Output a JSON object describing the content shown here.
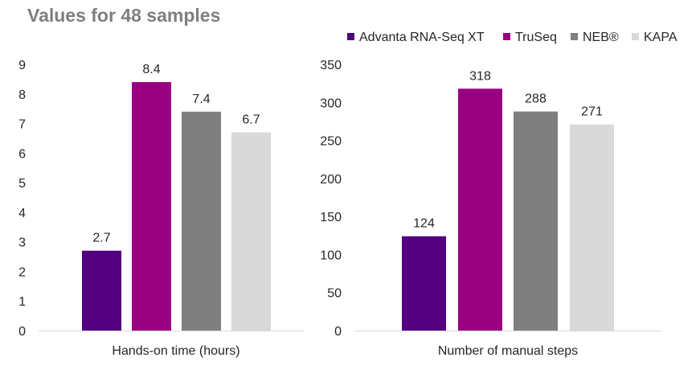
{
  "title": "Values for 48 samples",
  "colors": {
    "title": "#7f7f7f",
    "axis_line": "#d9d9d9",
    "text": "#262626"
  },
  "legend": [
    {
      "name": "Advanta RNA-Seq XT",
      "color": "#52007f"
    },
    {
      "name": "TruSeq",
      "color": "#990080"
    },
    {
      "name": "NEB®",
      "color": "#7f7f7f"
    },
    {
      "name": "KAPA",
      "color": "#d9d9d9"
    }
  ],
  "chart_data": [
    {
      "type": "bar",
      "title": "Values for 48 samples",
      "xlabel": "Hands-on time (hours)",
      "ylabel": "",
      "categories": [
        "Hands-on time (hours)"
      ],
      "series": [
        {
          "name": "Advanta RNA-Seq XT",
          "values": [
            2.7
          ],
          "label": "2.7"
        },
        {
          "name": "TruSeq",
          "values": [
            8.4
          ],
          "label": "8.4"
        },
        {
          "name": "NEB®",
          "values": [
            7.4
          ],
          "label": "7.4"
        },
        {
          "name": "KAPA",
          "values": [
            6.7
          ],
          "label": "6.7"
        }
      ],
      "ylim": [
        0,
        9
      ],
      "yticks": [
        "0",
        "1",
        "2",
        "3",
        "4",
        "5",
        "6",
        "7",
        "8",
        "9"
      ],
      "grid": false
    },
    {
      "type": "bar",
      "title": "Values for 48 samples",
      "xlabel": "Number of manual steps",
      "ylabel": "",
      "categories": [
        "Number of manual steps"
      ],
      "series": [
        {
          "name": "Advanta RNA-Seq XT",
          "values": [
            124
          ],
          "label": "124"
        },
        {
          "name": "TruSeq",
          "values": [
            318
          ],
          "label": "318"
        },
        {
          "name": "NEB®",
          "values": [
            288
          ],
          "label": "288"
        },
        {
          "name": "KAPA",
          "values": [
            271
          ],
          "label": "271"
        }
      ],
      "ylim": [
        0,
        350
      ],
      "yticks": [
        "0",
        "50",
        "100",
        "150",
        "200",
        "250",
        "300",
        "350"
      ],
      "grid": false
    }
  ]
}
